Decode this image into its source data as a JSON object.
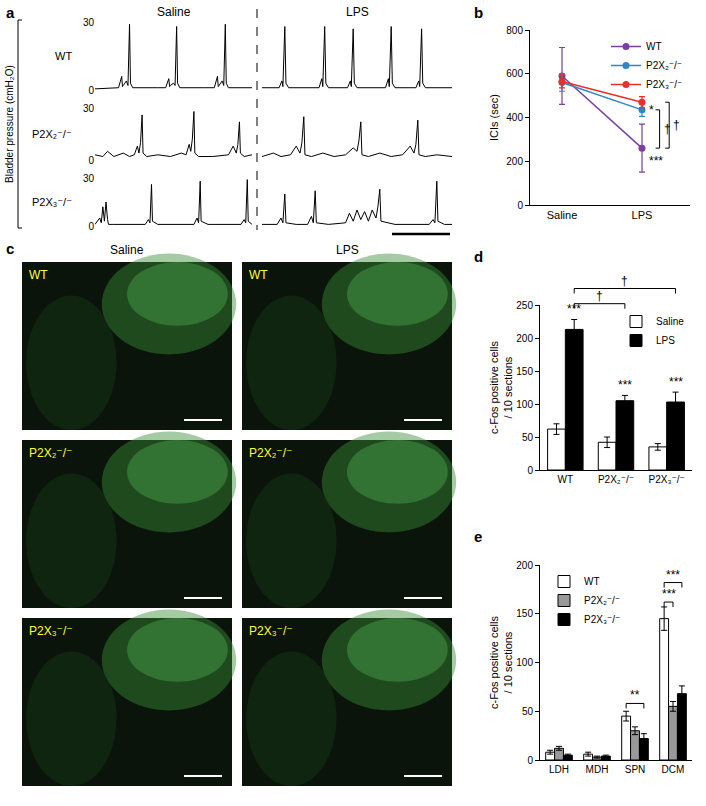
{
  "chart_data": [
    {
      "type": "line",
      "title": "a",
      "ylabel": "Bladder pressure (cmH₂O)",
      "columns": [
        "Saline",
        "LPS"
      ],
      "rows": [
        "WT",
        "P2X₂⁻/⁻",
        "P2X₃⁻/⁻"
      ],
      "xlim": [
        0,
        100
      ],
      "ylim": [
        0,
        30
      ],
      "yticks": [
        0,
        30
      ],
      "tick_labels": "y",
      "color": "#000000",
      "line_style": "solid",
      "traces": [
        [
          {
            "x": [
              0,
              15,
              17,
              17.5,
              18,
              20,
              21,
              22,
              22.6,
              24,
              40,
              45,
              47,
              47.5,
              48,
              50,
              51,
              52,
              52.6,
              54,
              70,
              76,
              78,
              78.5,
              79,
              81,
              82,
              83,
              83.6,
              85,
              100
            ],
            "values": [
              0.5,
              1,
              6,
              1.5,
              2,
              4,
              2,
              29,
              3,
              1,
              1,
              1,
              5,
              1.5,
              2,
              3,
              2,
              28,
              3,
              1,
              1,
              1,
              6,
              1.5,
              2,
              4,
              2,
              29,
              3,
              1,
              1
            ]
          },
          {
            "x": [
              0,
              9,
              10.5,
              11,
              12,
              12.6,
              14,
              30,
              31.5,
              32,
              33,
              33.6,
              35,
              45,
              46.5,
              47,
              48,
              48.6,
              50,
              65,
              66.5,
              67,
              68,
              68.6,
              70,
              81,
              82.5,
              83,
              84,
              84.6,
              86,
              100
            ],
            "values": [
              1,
              1,
              4,
              1.5,
              28,
              3,
              1,
              1,
              5,
              1.5,
              28,
              3,
              1,
              1,
              4,
              1.5,
              27,
              3,
              1,
              1,
              5,
              1.5,
              28,
              3,
              1,
              1,
              4,
              1.5,
              27,
              3,
              1,
              1
            ]
          }
        ],
        [
          {
            "x": [
              0,
              5,
              8,
              12,
              18,
              22,
              25,
              27,
              28,
              29,
              30,
              30.6,
              33,
              40,
              48,
              55,
              58,
              60,
              61,
              62,
              63,
              63.6,
              66,
              75,
              85,
              88,
              90,
              91,
              92,
              92.6,
              95,
              100
            ],
            "values": [
              3,
              2,
              5,
              2,
              4,
              2,
              3,
              8,
              4,
              10,
              26,
              4,
              2,
              3,
              2,
              4,
              3,
              9,
              5,
              12,
              28,
              4,
              2,
              2,
              3,
              8,
              4,
              9,
              22,
              4,
              2,
              3
            ]
          },
          {
            "x": [
              0,
              6,
              10,
              15,
              18,
              20,
              21,
              22,
              22.6,
              26,
              32,
              38,
              44,
              48,
              50,
              51,
              52,
              52.6,
              56,
              62,
              68,
              74,
              78,
              80,
              81,
              82,
              82.6,
              86,
              92,
              100
            ],
            "values": [
              2,
              4,
              2,
              3,
              8,
              4,
              10,
              25,
              3,
              2,
              4,
              2,
              3,
              7,
              5,
              11,
              22,
              3,
              2,
              4,
              2,
              3,
              8,
              4,
              9,
              23,
              3,
              2,
              3,
              2
            ]
          }
        ],
        [
          {
            "x": [
              0,
              3,
              4,
              5,
              6,
              7,
              8,
              8.6,
              12,
              25,
              32,
              34,
              35,
              36,
              36.6,
              40,
              55,
              63,
              65,
              66,
              67,
              67.6,
              72,
              85,
              93,
              95,
              96,
              97,
              97.6,
              100
            ],
            "values": [
              1,
              5,
              2,
              12,
              3,
              15,
              4,
              1,
              1,
              1,
              1,
              4,
              2,
              26,
              3,
              1,
              1,
              1,
              5,
              2,
              28,
              3,
              1,
              1,
              1,
              4,
              2,
              29,
              3,
              1
            ]
          },
          {
            "x": [
              0,
              8,
              10,
              11,
              12,
              12.6,
              18,
              24,
              26,
              27,
              28,
              28.6,
              35,
              44,
              46,
              48,
              50,
              52,
              54,
              56,
              58,
              60,
              61,
              62,
              62.6,
              70,
              80,
              88,
              90,
              91,
              92,
              92.6,
              96,
              100
            ],
            "values": [
              1,
              1,
              5,
              2,
              20,
              2,
              1,
              1,
              6,
              2,
              22,
              2,
              1,
              2,
              8,
              3,
              10,
              4,
              9,
              3,
              10,
              5,
              12,
              23,
              3,
              1,
              1,
              1,
              4,
              2,
              28,
              3,
              1,
              1
            ]
          }
        ]
      ]
    },
    {
      "type": "line",
      "title": "b",
      "categories": [
        "Saline",
        "LPS"
      ],
      "ylabel": "ICIs (sec)",
      "ylim": [
        0,
        800
      ],
      "yticks": [
        0,
        200,
        400,
        600,
        800
      ],
      "marker": "circle",
      "legend": "upper right",
      "series": [
        {
          "name": "WT",
          "color": "#7b3fa0",
          "values": [
            590,
            260
          ],
          "errors": [
            130,
            110
          ]
        },
        {
          "name": "P2X₂⁻/⁻",
          "color": "#2e86c8",
          "values": [
            560,
            435
          ],
          "errors": [
            40,
            30
          ]
        },
        {
          "name": "P2X₃⁻/⁻",
          "color": "#e8302a",
          "values": [
            565,
            470
          ],
          "errors": [
            30,
            25
          ]
        }
      ],
      "annotations": [
        {
          "text": "*",
          "x": "LPS",
          "y": 435
        },
        {
          "text": "***",
          "x": "LPS",
          "y": 200
        }
      ],
      "brackets": [
        {
          "text": "†",
          "x": "LPS",
          "series": [
            "WT",
            "P2X₂⁻/⁻"
          ]
        },
        {
          "text": "†",
          "x": "LPS",
          "series": [
            "WT",
            "P2X₃⁻/⁻"
          ]
        }
      ]
    },
    {
      "type": "image",
      "title": "c",
      "columns": [
        "Saline",
        "LPS"
      ],
      "rows": [
        "WT",
        "P2X₂⁻/⁻",
        "P2X₃⁻/⁻"
      ]
    },
    {
      "type": "bar",
      "title": "d",
      "categories": [
        "WT",
        "P2X₂⁻/⁻",
        "P2X₃⁻/⁻"
      ],
      "ylabel": "c-Fos positive cells\n/ 10 sections",
      "ylim": [
        0,
        250
      ],
      "yticks": [
        0,
        50,
        100,
        150,
        200,
        250
      ],
      "legend": "upper right",
      "series": [
        {
          "name": "Saline",
          "color": "#ffffff",
          "values": [
            62,
            42,
            35
          ],
          "errors": [
            8,
            8,
            5
          ]
        },
        {
          "name": "LPS",
          "color": "#000000",
          "values": [
            213,
            105,
            103
          ],
          "errors": [
            15,
            8,
            15
          ]
        }
      ],
      "annotations": [
        {
          "text": "***",
          "x": "WT",
          "series": "LPS",
          "y": 230
        },
        {
          "text": "***",
          "x": "P2X₂⁻/⁻",
          "series": "LPS",
          "y": 115
        },
        {
          "text": "***",
          "x": "P2X₃⁻/⁻",
          "series": "LPS",
          "y": 120
        }
      ],
      "brackets": [
        {
          "text": "†",
          "from": [
            "WT",
            "LPS"
          ],
          "to": [
            "P2X₂⁻/⁻",
            "LPS"
          ],
          "y": 252
        },
        {
          "text": "†",
          "from": [
            "WT",
            "LPS"
          ],
          "to": [
            "P2X₃⁻/⁻",
            "LPS"
          ],
          "y": 275
        }
      ]
    },
    {
      "type": "bar",
      "title": "e",
      "categories": [
        "LDH",
        "MDH",
        "SPN",
        "DCM"
      ],
      "ylabel": "c-Fos positive cells\n/ 10 sections",
      "ylim": [
        0,
        200
      ],
      "yticks": [
        0,
        50,
        100,
        150,
        200
      ],
      "legend": "upper left",
      "series": [
        {
          "name": "WT",
          "color": "#ffffff",
          "values": [
            8,
            6,
            45,
            145
          ],
          "errors": [
            2,
            2,
            5,
            12
          ]
        },
        {
          "name": "P2X₂⁻/⁻",
          "color": "#999999",
          "values": [
            12,
            3,
            30,
            55
          ],
          "errors": [
            2,
            1,
            4,
            5
          ]
        },
        {
          "name": "P2X₃⁻/⁻",
          "color": "#000000",
          "values": [
            5,
            4,
            22,
            68
          ],
          "errors": [
            1,
            1,
            5,
            8
          ]
        }
      ],
      "annotations": [],
      "brackets": [
        {
          "text": "**",
          "from": [
            "SPN",
            "WT"
          ],
          "to": [
            "SPN",
            "P2X₃⁻/⁻"
          ],
          "y": 58
        },
        {
          "text": "***",
          "from": [
            "DCM",
            "WT"
          ],
          "to": [
            "DCM",
            "P2X₂⁻/⁻"
          ],
          "y": 162
        },
        {
          "text": "***",
          "from": [
            "DCM",
            "WT"
          ],
          "to": [
            "DCM",
            "P2X₃⁻/⁻"
          ],
          "y": 182
        }
      ]
    }
  ]
}
